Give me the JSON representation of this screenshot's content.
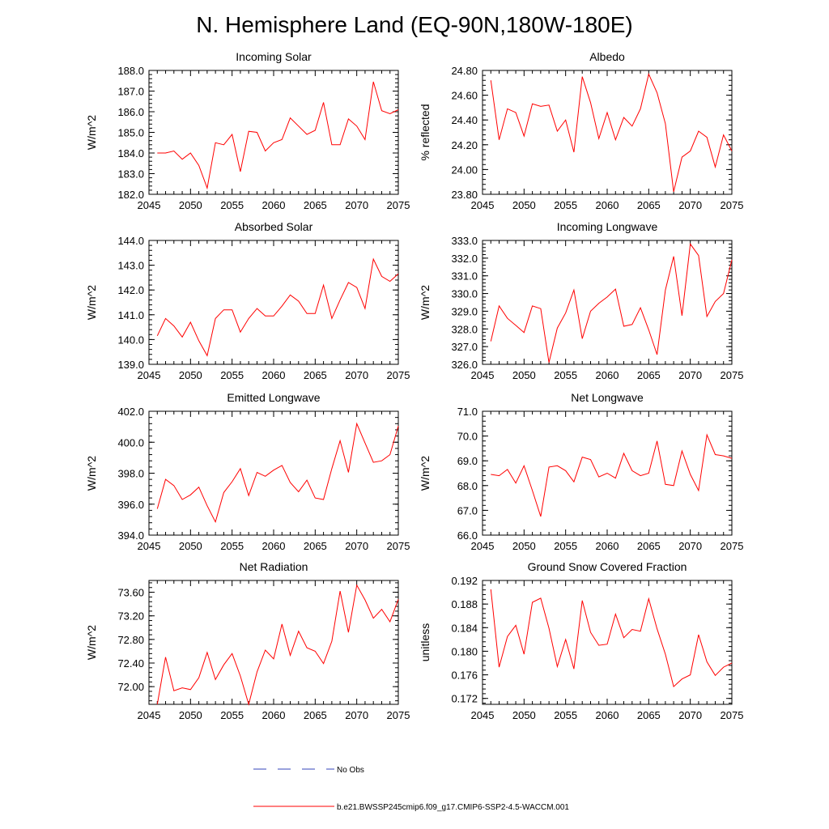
{
  "figure": {
    "title": "N. Hemisphere Land (EQ-90N,180W-180E)",
    "legend": {
      "obs_label": "No Obs",
      "obs_color": "#3344bb",
      "model_label": "b.e21.BWSSP245cmip6.f09_g17.CMIP6-SSP2-4.5-WACCM.001",
      "model_color": "#ff0000"
    }
  },
  "chart_data": [
    {
      "type": "line",
      "title": "Incoming Solar",
      "ylabel": "W/m^2",
      "xlim": [
        2045,
        2075
      ],
      "ylim": [
        182.0,
        188.0
      ],
      "xticks": [
        2045,
        2050,
        2055,
        2060,
        2065,
        2070,
        2075
      ],
      "yticks": [
        "182.0",
        "183.0",
        "184.0",
        "185.0",
        "186.0",
        "187.0",
        "188.0"
      ],
      "x": [
        2046,
        2047,
        2048,
        2049,
        2050,
        2051,
        2052,
        2053,
        2054,
        2055,
        2056,
        2057,
        2058,
        2059,
        2060,
        2061,
        2062,
        2063,
        2064,
        2065,
        2066,
        2067,
        2068,
        2069,
        2070,
        2071,
        2072,
        2073,
        2074,
        2075
      ],
      "series": [
        {
          "name": "b.e21.BWSSP245cmip6.f09_g17.CMIP6-SSP2-4.5-WACCM.001",
          "values": [
            184.0,
            184.0,
            184.1,
            183.7,
            184.0,
            183.4,
            182.3,
            184.5,
            184.4,
            184.9,
            183.1,
            185.05,
            185.0,
            184.1,
            184.5,
            184.65,
            185.7,
            185.3,
            184.9,
            185.1,
            186.45,
            184.4,
            184.4,
            185.65,
            185.3,
            184.65,
            187.45,
            186.05,
            185.9,
            186.1
          ]
        }
      ]
    },
    {
      "type": "line",
      "title": "Albedo",
      "ylabel": "% reflected",
      "xlim": [
        2045,
        2075
      ],
      "ylim": [
        23.8,
        24.8
      ],
      "xticks": [
        2045,
        2050,
        2055,
        2060,
        2065,
        2070,
        2075
      ],
      "yticks": [
        "23.80",
        "24.00",
        "24.20",
        "24.40",
        "24.60",
        "24.80"
      ],
      "x": [
        2046,
        2047,
        2048,
        2049,
        2050,
        2051,
        2052,
        2053,
        2054,
        2055,
        2056,
        2057,
        2058,
        2059,
        2060,
        2061,
        2062,
        2063,
        2064,
        2065,
        2066,
        2067,
        2068,
        2069,
        2070,
        2071,
        2072,
        2073,
        2074,
        2075
      ],
      "series": [
        {
          "name": "b.e21.BWSSP245cmip6.f09_g17.CMIP6-SSP2-4.5-WACCM.001",
          "values": [
            24.72,
            24.24,
            24.49,
            24.46,
            24.27,
            24.53,
            24.51,
            24.52,
            24.31,
            24.4,
            24.14,
            24.75,
            24.54,
            24.25,
            24.46,
            24.24,
            24.42,
            24.35,
            24.49,
            24.77,
            24.62,
            24.37,
            23.82,
            24.1,
            24.15,
            24.31,
            24.26,
            24.02,
            24.28,
            24.15
          ]
        }
      ]
    },
    {
      "type": "line",
      "title": "Absorbed Solar",
      "ylabel": "W/m^2",
      "xlim": [
        2045,
        2075
      ],
      "ylim": [
        139.0,
        144.0
      ],
      "xticks": [
        2045,
        2050,
        2055,
        2060,
        2065,
        2070,
        2075
      ],
      "yticks": [
        "139.0",
        "140.0",
        "141.0",
        "142.0",
        "143.0",
        "144.0"
      ],
      "x": [
        2046,
        2047,
        2048,
        2049,
        2050,
        2051,
        2052,
        2053,
        2054,
        2055,
        2056,
        2057,
        2058,
        2059,
        2060,
        2061,
        2062,
        2063,
        2064,
        2065,
        2066,
        2067,
        2068,
        2069,
        2070,
        2071,
        2072,
        2073,
        2074,
        2075
      ],
      "series": [
        {
          "name": "b.e21.BWSSP245cmip6.f09_g17.CMIP6-SSP2-4.5-WACCM.001",
          "values": [
            140.15,
            140.85,
            140.55,
            140.1,
            140.7,
            139.95,
            139.35,
            140.85,
            141.2,
            141.2,
            140.3,
            140.85,
            141.25,
            140.95,
            140.95,
            141.35,
            141.8,
            141.55,
            141.05,
            141.05,
            142.2,
            140.85,
            141.6,
            142.3,
            142.1,
            141.25,
            143.25,
            142.55,
            142.35,
            142.65
          ]
        }
      ]
    },
    {
      "type": "line",
      "title": "Incoming Longwave",
      "ylabel": "W/m^2",
      "xlim": [
        2045,
        2075
      ],
      "ylim": [
        326.0,
        333.0
      ],
      "xticks": [
        2045,
        2050,
        2055,
        2060,
        2065,
        2070,
        2075
      ],
      "yticks": [
        "326.0",
        "327.0",
        "328.0",
        "329.0",
        "330.0",
        "331.0",
        "332.0",
        "333.0"
      ],
      "x": [
        2046,
        2047,
        2048,
        2049,
        2050,
        2051,
        2052,
        2053,
        2054,
        2055,
        2056,
        2057,
        2058,
        2059,
        2060,
        2061,
        2062,
        2063,
        2064,
        2065,
        2066,
        2067,
        2068,
        2069,
        2070,
        2071,
        2072,
        2073,
        2074,
        2075
      ],
      "series": [
        {
          "name": "b.e21.BWSSP245cmip6.f09_g17.CMIP6-SSP2-4.5-WACCM.001",
          "values": [
            327.3,
            329.3,
            328.6,
            328.2,
            327.8,
            329.3,
            329.15,
            326.1,
            328.05,
            328.9,
            330.2,
            327.45,
            329.0,
            329.45,
            329.8,
            330.25,
            328.15,
            328.25,
            329.2,
            327.95,
            326.55,
            330.2,
            332.1,
            328.75,
            332.8,
            332.15,
            328.7,
            329.55,
            330.0,
            331.9
          ]
        }
      ]
    },
    {
      "type": "line",
      "title": "Emitted Longwave",
      "ylabel": "W/m^2",
      "xlim": [
        2045,
        2075
      ],
      "ylim": [
        394.0,
        402.0
      ],
      "xticks": [
        2045,
        2050,
        2055,
        2060,
        2065,
        2070,
        2075
      ],
      "yticks": [
        "394.0",
        "396.0",
        "398.0",
        "400.0",
        "402.0"
      ],
      "x": [
        2046,
        2047,
        2048,
        2049,
        2050,
        2051,
        2052,
        2053,
        2054,
        2055,
        2056,
        2057,
        2058,
        2059,
        2060,
        2061,
        2062,
        2063,
        2064,
        2065,
        2066,
        2067,
        2068,
        2069,
        2070,
        2071,
        2072,
        2073,
        2074,
        2075
      ],
      "series": [
        {
          "name": "b.e21.BWSSP245cmip6.f09_g17.CMIP6-SSP2-4.5-WACCM.001",
          "values": [
            395.7,
            397.6,
            397.2,
            396.3,
            396.6,
            397.1,
            395.9,
            394.85,
            396.75,
            397.45,
            398.3,
            396.55,
            398.05,
            397.8,
            398.2,
            398.5,
            397.4,
            396.8,
            397.55,
            396.4,
            396.3,
            398.3,
            400.1,
            398.05,
            401.2,
            399.95,
            398.7,
            398.8,
            399.2,
            401.05
          ]
        }
      ]
    },
    {
      "type": "line",
      "title": "Net Longwave",
      "ylabel": "W/m^2",
      "xlim": [
        2045,
        2075
      ],
      "ylim": [
        66.0,
        71.0
      ],
      "xticks": [
        2045,
        2050,
        2055,
        2060,
        2065,
        2070,
        2075
      ],
      "yticks": [
        "66.0",
        "67.0",
        "68.0",
        "69.0",
        "70.0",
        "71.0"
      ],
      "x": [
        2046,
        2047,
        2048,
        2049,
        2050,
        2051,
        2052,
        2053,
        2054,
        2055,
        2056,
        2057,
        2058,
        2059,
        2060,
        2061,
        2062,
        2063,
        2064,
        2065,
        2066,
        2067,
        2068,
        2069,
        2070,
        2071,
        2072,
        2073,
        2074,
        2075
      ],
      "series": [
        {
          "name": "b.e21.BWSSP245cmip6.f09_g17.CMIP6-SSP2-4.5-WACCM.001",
          "values": [
            68.45,
            68.4,
            68.65,
            68.1,
            68.8,
            67.8,
            66.75,
            68.75,
            68.8,
            68.6,
            68.15,
            69.15,
            69.05,
            68.35,
            68.5,
            68.3,
            69.3,
            68.6,
            68.4,
            68.5,
            69.8,
            68.05,
            68.0,
            69.4,
            68.45,
            67.8,
            70.05,
            69.25,
            69.2,
            69.1
          ]
        }
      ]
    },
    {
      "type": "line",
      "title": "Net Radiation",
      "ylabel": "W/m^2",
      "xlim": [
        2045,
        2075
      ],
      "ylim": [
        71.7,
        73.8
      ],
      "xticks": [
        2045,
        2050,
        2055,
        2060,
        2065,
        2070,
        2075
      ],
      "yticks": [
        "72.00",
        "72.40",
        "72.80",
        "73.20",
        "73.60"
      ],
      "x": [
        2046,
        2047,
        2048,
        2049,
        2050,
        2051,
        2052,
        2053,
        2054,
        2055,
        2056,
        2057,
        2058,
        2059,
        2060,
        2061,
        2062,
        2063,
        2064,
        2065,
        2066,
        2067,
        2068,
        2069,
        2070,
        2071,
        2072,
        2073,
        2074,
        2075
      ],
      "series": [
        {
          "name": "b.e21.BWSSP245cmip6.f09_g17.CMIP6-SSP2-4.5-WACCM.001",
          "values": [
            71.7,
            72.5,
            71.93,
            71.98,
            71.95,
            72.15,
            72.58,
            72.12,
            72.37,
            72.56,
            72.18,
            71.7,
            72.25,
            72.62,
            72.47,
            73.06,
            72.53,
            72.94,
            72.66,
            72.6,
            72.39,
            72.77,
            73.62,
            72.92,
            73.72,
            73.47,
            73.16,
            73.31,
            73.1,
            73.48
          ]
        }
      ]
    },
    {
      "type": "line",
      "title": "Ground Snow Covered Fraction",
      "ylabel": "unitless",
      "xlim": [
        2045,
        2075
      ],
      "ylim": [
        0.171,
        0.192
      ],
      "xticks": [
        2045,
        2050,
        2055,
        2060,
        2065,
        2070,
        2075
      ],
      "yticks": [
        "0.172",
        "0.176",
        "0.180",
        "0.184",
        "0.188",
        "0.192"
      ],
      "x": [
        2046,
        2047,
        2048,
        2049,
        2050,
        2051,
        2052,
        2053,
        2054,
        2055,
        2056,
        2057,
        2058,
        2059,
        2060,
        2061,
        2062,
        2063,
        2064,
        2065,
        2066,
        2067,
        2068,
        2069,
        2070,
        2071,
        2072,
        2073,
        2074,
        2075
      ],
      "series": [
        {
          "name": "b.e21.BWSSP245cmip6.f09_g17.CMIP6-SSP2-4.5-WACCM.001",
          "values": [
            0.1905,
            0.1773,
            0.1825,
            0.1844,
            0.1795,
            0.1883,
            0.189,
            0.1839,
            0.1774,
            0.182,
            0.177,
            0.1886,
            0.1832,
            0.181,
            0.1812,
            0.1863,
            0.1823,
            0.1837,
            0.1834,
            0.1889,
            0.1838,
            0.1795,
            0.174,
            0.1753,
            0.176,
            0.1828,
            0.1782,
            0.1759,
            0.1773,
            0.178
          ]
        }
      ]
    }
  ]
}
